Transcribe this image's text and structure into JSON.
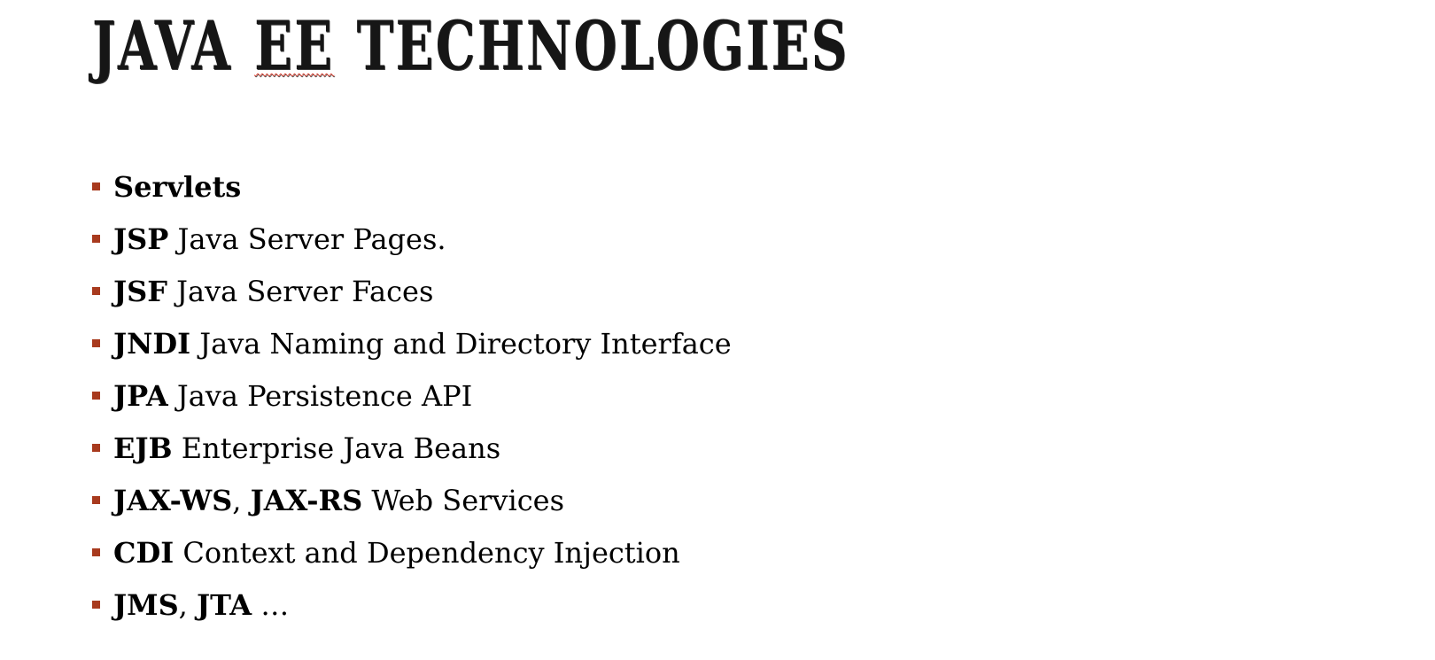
{
  "slide": {
    "title_words": [
      "JAVA",
      "EE",
      "TECHNOLOGIES"
    ],
    "accent_color": "#a83a1e",
    "bullets": [
      {
        "terms": [
          "Servlets"
        ],
        "separator": "",
        "description": ""
      },
      {
        "terms": [
          "JSP"
        ],
        "separator": "",
        "description": "Java Server Pages."
      },
      {
        "terms": [
          "JSF"
        ],
        "separator": "",
        "description": "Java Server Faces"
      },
      {
        "terms": [
          "JNDI"
        ],
        "separator": "",
        "description": "Java Naming and Directory Interface"
      },
      {
        "terms": [
          "JPA"
        ],
        "separator": "",
        "description": "Java Persistence API"
      },
      {
        "terms": [
          "EJB"
        ],
        "separator": "",
        "description": "Enterprise Java Beans"
      },
      {
        "terms": [
          "JAX-WS",
          "JAX-RS"
        ],
        "separator": ", ",
        "description": "Web Services"
      },
      {
        "terms": [
          "CDI"
        ],
        "separator": "",
        "description": "Context and Dependency Injection"
      },
      {
        "terms": [
          "JMS",
          "JTA"
        ],
        "separator": ", ",
        "description": "…"
      }
    ]
  }
}
